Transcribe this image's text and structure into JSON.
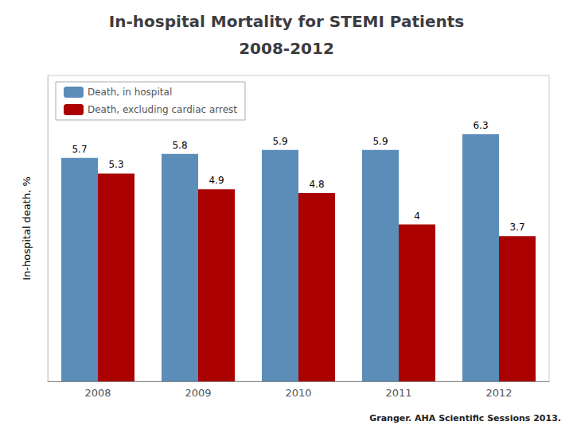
{
  "chart_data": {
    "type": "bar",
    "title": "In-hospital Mortality for STEMI Patients",
    "subtitle": "2008-2012",
    "categories": [
      "2008",
      "2009",
      "2010",
      "2011",
      "2012"
    ],
    "series": [
      {
        "name": "Death, in hospital",
        "color": "#5B8DB8",
        "values": [
          5.7,
          5.8,
          5.9,
          5.9,
          6.3
        ]
      },
      {
        "name": "Death, excluding cardiac arrest",
        "color": "#AA0000",
        "values": [
          5.3,
          4.9,
          4.8,
          4.0,
          3.7
        ]
      }
    ],
    "ylabel": "In-hospital death, %",
    "ylim": [
      0,
      7.8
    ],
    "tick_labels": "x",
    "grid": false,
    "legend": "upper left",
    "data_labels": true,
    "annotations": [
      "Granger. AHA Scientific Sessions 2013."
    ]
  }
}
